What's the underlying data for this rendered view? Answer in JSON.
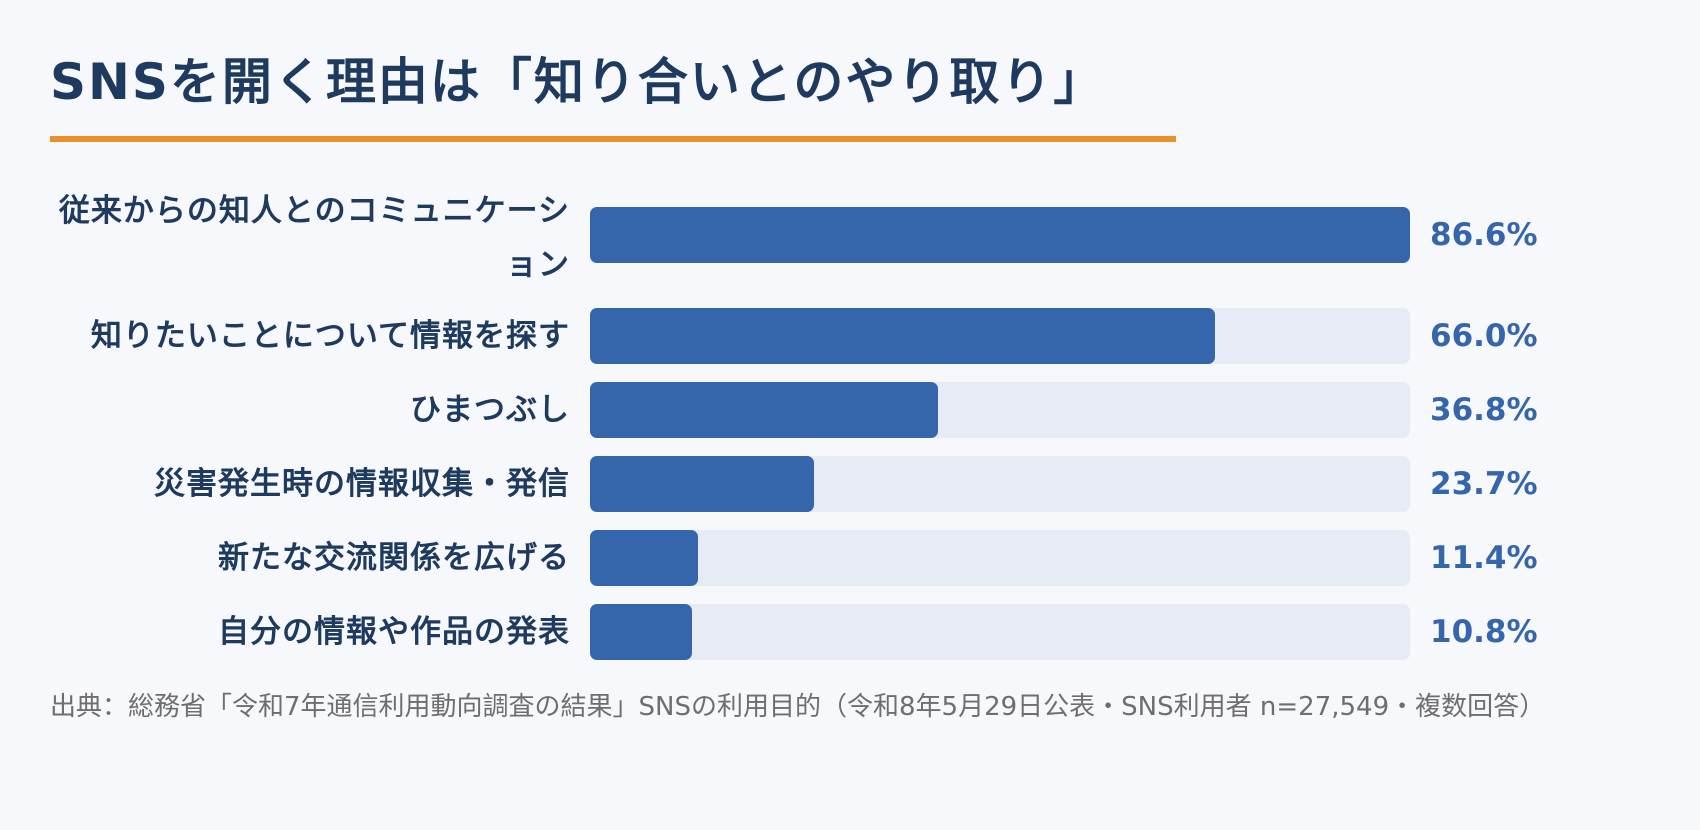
{
  "title": "SNSを開く理由は「知り合いとのやり取り」",
  "colors": {
    "bar": "#3566ab",
    "track": "#e6ebf5",
    "accent": "#e8912a",
    "text": "#1e3a5f"
  },
  "chart_data": {
    "type": "bar",
    "orientation": "horizontal",
    "unit": "%",
    "xlim": [
      0,
      100
    ],
    "categories": [
      "従来からの知人とのコミュニケーション",
      "知りたいことについて情報を探す",
      "ひまつぶし",
      "災害発生時の情報収集・発信",
      "新たな交流関係を広げる",
      "自分の情報や作品の発表"
    ],
    "values": [
      86.6,
      66.0,
      36.8,
      23.7,
      11.4,
      10.8
    ],
    "value_labels": [
      "86.6%",
      "66.0%",
      "36.8%",
      "23.7%",
      "11.4%",
      "10.8%"
    ]
  },
  "source": "出典：総務省「令和7年通信利用動向調査の結果」SNSの利用目的（令和8年5月29日公表・SNS利用者 n=27,549・複数回答）"
}
